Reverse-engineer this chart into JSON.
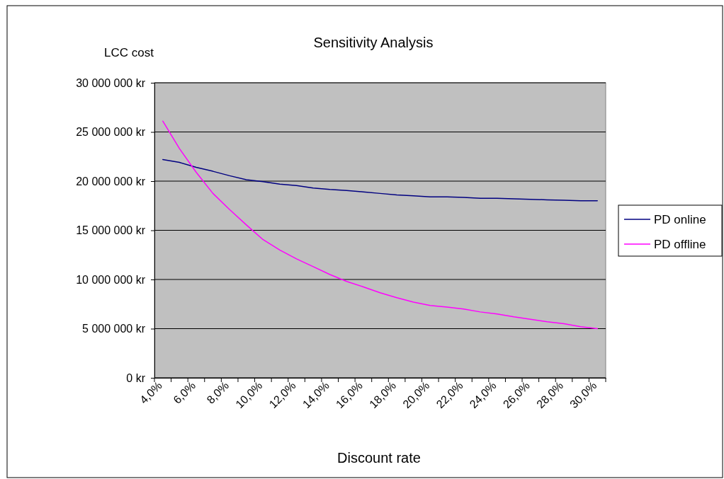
{
  "chart_data": {
    "type": "line",
    "title": "Sensitivity Analysis",
    "xlabel": "Discount rate",
    "ylabel": "LCC cost",
    "categories": [
      "4,0%",
      null,
      "6,0%",
      null,
      "8,0%",
      null,
      "10,0%",
      null,
      "12,0%",
      null,
      "14,0%",
      null,
      "16,0%",
      null,
      "18,0%",
      null,
      "20,0%",
      null,
      "22,0%",
      null,
      "24,0%",
      null,
      "26,0%",
      null,
      "28,0%",
      null,
      "30,0%"
    ],
    "series": [
      {
        "name": "PD online",
        "color": "#000080",
        "values": [
          22200000,
          21900000,
          21400000,
          21000000,
          20550000,
          20150000,
          19950000,
          19700000,
          19550000,
          19300000,
          19150000,
          19050000,
          18900000,
          18750000,
          18600000,
          18500000,
          18400000,
          18400000,
          18350000,
          18250000,
          18250000,
          18200000,
          18150000,
          18100000,
          18050000,
          18000000,
          18000000
        ]
      },
      {
        "name": "PD offline",
        "color": "#ff00ff",
        "values": [
          26100000,
          23300000,
          20900000,
          18750000,
          17100000,
          15550000,
          14050000,
          13000000,
          12100000,
          11300000,
          10500000,
          9800000,
          9250000,
          8650000,
          8150000,
          7700000,
          7350000,
          7200000,
          7000000,
          6700000,
          6500000,
          6200000,
          5950000,
          5700000,
          5500000,
          5200000,
          5000000
        ]
      }
    ],
    "ylim": [
      0,
      30000000
    ],
    "yticks": [
      {
        "value": 0,
        "label": "0 kr"
      },
      {
        "value": 5000000,
        "label": "5 000 000 kr"
      },
      {
        "value": 10000000,
        "label": "10 000 000 kr"
      },
      {
        "value": 15000000,
        "label": "15 000 000 kr"
      },
      {
        "value": 20000000,
        "label": "20 000 000 kr"
      },
      {
        "value": 25000000,
        "label": "25 000 000 kr"
      },
      {
        "value": 30000000,
        "label": "30 000 000 kr"
      }
    ],
    "grid": "y",
    "legend": "right",
    "marker": "none",
    "line_style": "solid"
  }
}
